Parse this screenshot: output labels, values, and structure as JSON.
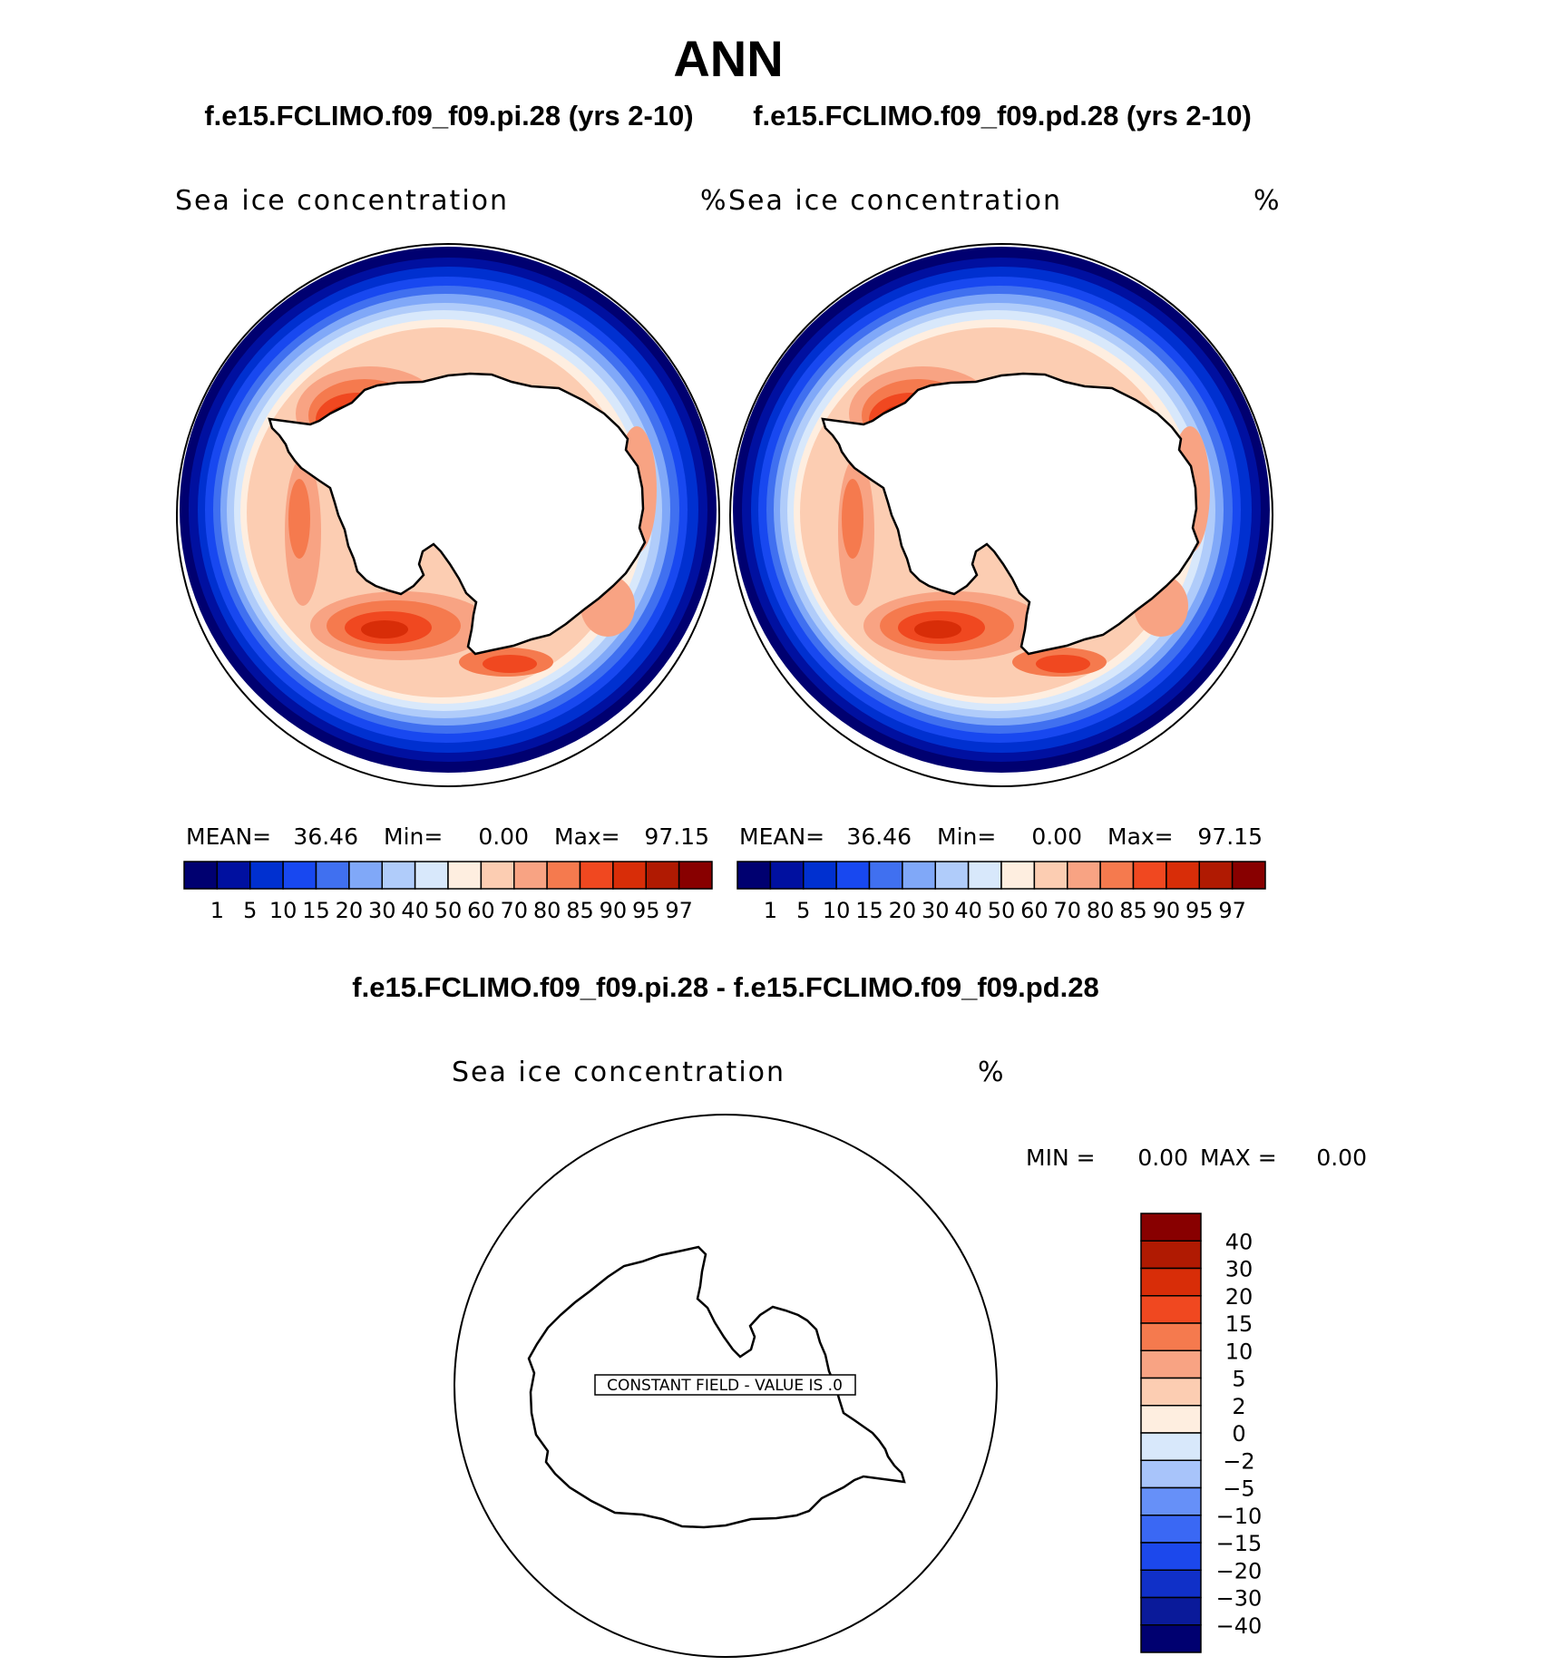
{
  "figure": {
    "title": "ANN",
    "left_case": "f.e15.FCLIMO.f09_f09.pi.28 (yrs 2-10)",
    "right_case": "f.e15.FCLIMO.f09_f09.pd.28 (yrs 2-10)",
    "diff_title": "f.e15.FCLIMO.f09_f09.pi.28 - f.e15.FCLIMO.f09_f09.pd.28"
  },
  "colors": {
    "abs_palette": [
      "#000070",
      "#0010a0",
      "#0030d0",
      "#1848f0",
      "#4070f0",
      "#80a8f8",
      "#b0ccfa",
      "#d8e8fb",
      "#feeee0",
      "#fccdb2",
      "#f8a383",
      "#f57a4e",
      "#f04820",
      "#d82d08",
      "#b01a02",
      "#880000"
    ],
    "diff_palette": [
      "#000070",
      "#0a1a9a",
      "#1030c8",
      "#1c48ec",
      "#3a68f4",
      "#6690f8",
      "#a8c4fa",
      "#d8e8fb",
      "#feeee0",
      "#fccdb2",
      "#f8a383",
      "#f57a4e",
      "#f04820",
      "#d82d08",
      "#b01a02",
      "#880000"
    ]
  },
  "chart_data": [
    {
      "type": "heatmap",
      "projection": "south-polar-stereographic",
      "case": "f.e15.FCLIMO.f09_f09.pi.28 (yrs 2-10)",
      "title": "Sea ice concentration",
      "units": "%",
      "stats": {
        "mean_label": "MEAN=",
        "mean": "36.46",
        "min_label": "Min=",
        "min": "0.00",
        "max_label": "Max=",
        "max": "97.15"
      },
      "levels": [
        "1",
        "5",
        "10",
        "15",
        "20",
        "30",
        "40",
        "50",
        "60",
        "70",
        "80",
        "85",
        "90",
        "95",
        "97"
      ]
    },
    {
      "type": "heatmap",
      "projection": "south-polar-stereographic",
      "case": "f.e15.FCLIMO.f09_f09.pd.28 (yrs 2-10)",
      "title": "Sea ice concentration",
      "units": "%",
      "stats": {
        "mean_label": "MEAN=",
        "mean": "36.46",
        "min_label": "Min=",
        "min": "0.00",
        "max_label": "Max=",
        "max": "97.15"
      },
      "levels": [
        "1",
        "5",
        "10",
        "15",
        "20",
        "30",
        "40",
        "50",
        "60",
        "70",
        "80",
        "85",
        "90",
        "95",
        "97"
      ]
    },
    {
      "type": "heatmap",
      "projection": "south-polar-stereographic",
      "case": "f.e15.FCLIMO.f09_f09.pi.28 - f.e15.FCLIMO.f09_f09.pd.28",
      "title": "Sea ice concentration",
      "units": "%",
      "stats": {
        "min_label": "MIN =",
        "min": "0.00",
        "max_label": "MAX =",
        "max": "0.00"
      },
      "constant_field_label": "CONSTANT FIELD - VALUE IS .0",
      "levels": [
        "40",
        "30",
        "20",
        "15",
        "10",
        "5",
        "2",
        "0",
        "−2",
        "−5",
        "−10",
        "−15",
        "−20",
        "−30",
        "−40"
      ]
    }
  ]
}
